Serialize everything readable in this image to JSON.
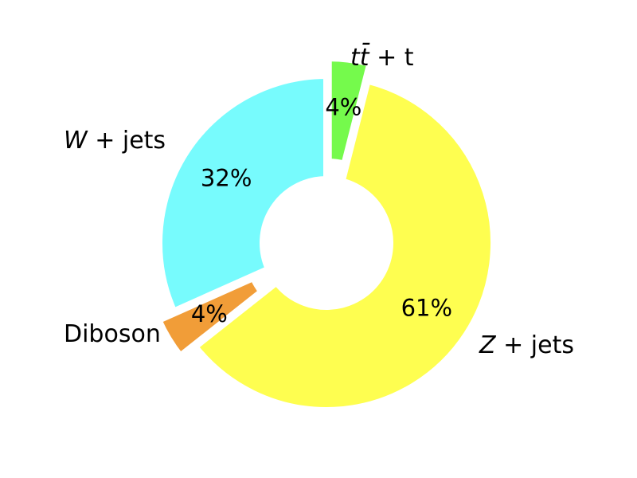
{
  "chart_data": {
    "type": "pie",
    "style": "donut",
    "slices": [
      {
        "label": "W + jets",
        "value": 32,
        "percent_label": "32%",
        "color": "#77fbfd",
        "exploded": false
      },
      {
        "label": "Diboson",
        "value": 4,
        "percent_label": "4%",
        "color": "#f19d38",
        "exploded": true
      },
      {
        "label": "Z + jets",
        "value": 61,
        "percent_label": "61%",
        "color": "#fefe50",
        "exploded": false
      },
      {
        "label": "tt̄ + t",
        "value": 4,
        "percent_label": "4%",
        "color": "#75fa4c",
        "exploded": true
      }
    ],
    "start_angle_deg": 90,
    "direction": "counterclockwise",
    "legend": "none"
  }
}
